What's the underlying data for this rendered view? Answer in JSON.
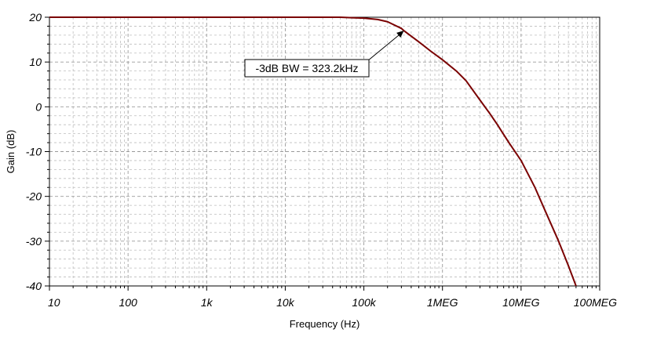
{
  "chart_data": {
    "type": "line",
    "title": "",
    "xlabel": "Frequency (Hz)",
    "ylabel": "Gain (dB)",
    "x_scale": "log",
    "xlim": [
      10,
      100000000
    ],
    "ylim": [
      -40,
      20
    ],
    "grid": true,
    "x_ticks": [
      {
        "value": 10,
        "label": "10"
      },
      {
        "value": 100,
        "label": "100"
      },
      {
        "value": 1000,
        "label": "1k"
      },
      {
        "value": 10000,
        "label": "10k"
      },
      {
        "value": 100000,
        "label": "100k"
      },
      {
        "value": 1000000,
        "label": "1MEG"
      },
      {
        "value": 10000000,
        "label": "10MEG"
      },
      {
        "value": 100000000,
        "label": "100MEG"
      }
    ],
    "y_ticks": [
      {
        "value": 20,
        "label": "20"
      },
      {
        "value": 10,
        "label": "10"
      },
      {
        "value": 0,
        "label": "0"
      },
      {
        "value": -10,
        "label": "-10"
      },
      {
        "value": -20,
        "label": "-20"
      },
      {
        "value": -30,
        "label": "-30"
      },
      {
        "value": -40,
        "label": "-40"
      }
    ],
    "series": [
      {
        "color": "#7a0000",
        "x": [
          10,
          1000,
          10000,
          50000,
          70000,
          100000,
          150000,
          200000,
          300000,
          323200,
          500000,
          700000,
          1000000,
          1500000,
          2000000,
          3000000,
          4000000,
          5000000,
          7000000,
          10000000,
          15000000,
          20000000,
          30000000,
          40000000,
          50000000
        ],
        "y": [
          20,
          20,
          20,
          20,
          19.9,
          19.8,
          19.5,
          19.0,
          17.5,
          17.0,
          14.5,
          12.5,
          10.5,
          8.0,
          5.8,
          1.5,
          -1.5,
          -4.0,
          -8.0,
          -12.0,
          -18.0,
          -23.0,
          -30.0,
          -35.5,
          -40.0
        ]
      }
    ],
    "annotations": [
      {
        "text": "-3dB BW = 323.2kHz",
        "x": 323200,
        "y": 17.0
      }
    ]
  }
}
